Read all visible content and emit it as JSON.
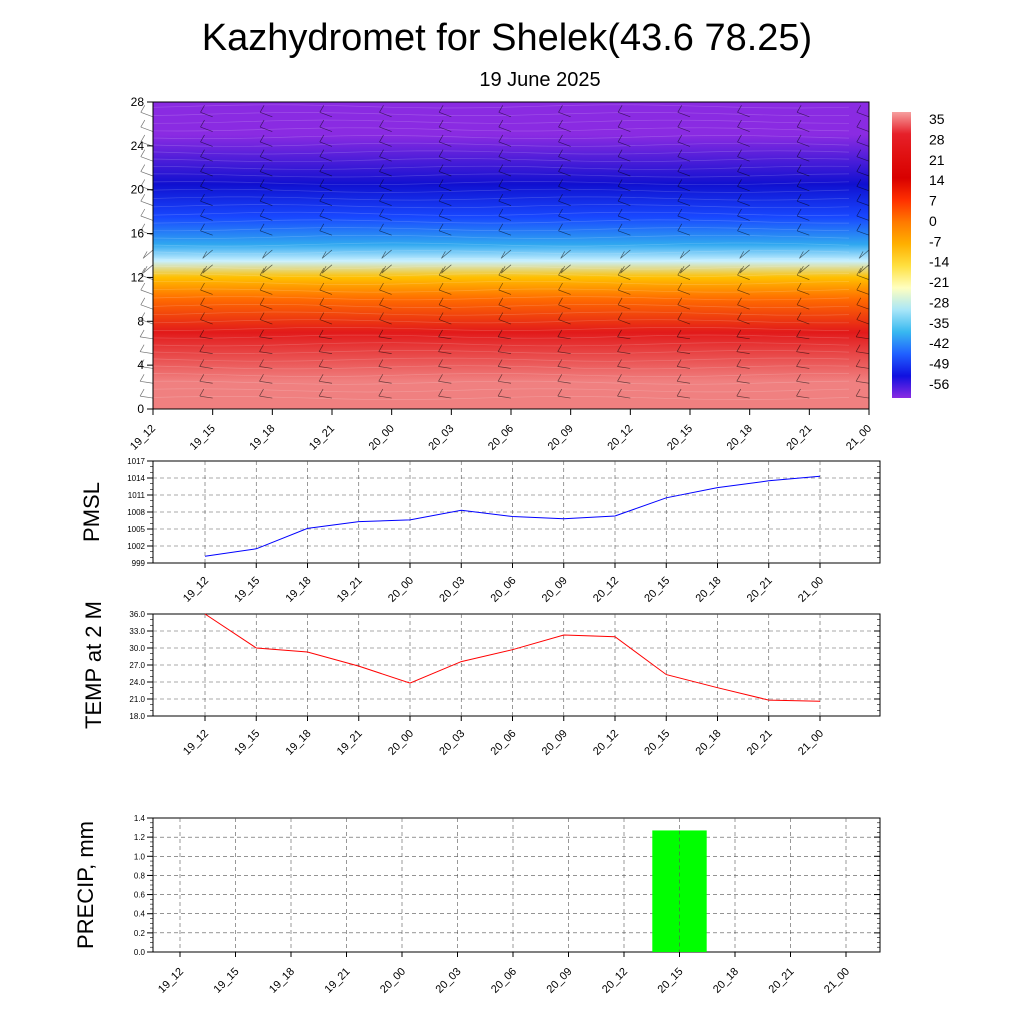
{
  "title": "Kazhydromet for Shelek(43.6 78.25)",
  "subtitle": "19 June 2025",
  "time_labels": [
    "19_12",
    "19_15",
    "19_18",
    "19_21",
    "20_00",
    "20_03",
    "20_06",
    "20_09",
    "20_12",
    "20_15",
    "20_18",
    "20_21",
    "21_00"
  ],
  "colors": {
    "pmsl_line": "#0000ff",
    "temp_line": "#ff0000",
    "precip_bar": "#00ff00"
  },
  "chart_data": [
    {
      "type": "heatmap",
      "name": "temperature-wind-profile",
      "ylim": [
        0,
        28
      ],
      "yticks": [
        0,
        4,
        8,
        12,
        16,
        20,
        24,
        28
      ],
      "categories": [
        "19_12",
        "19_15",
        "19_18",
        "19_21",
        "20_00",
        "20_03",
        "20_06",
        "20_09",
        "20_12",
        "20_15",
        "20_18",
        "20_21",
        "21_00"
      ],
      "colorbar": {
        "labels": [
          "35",
          "28",
          "21",
          "14",
          "7",
          "0",
          "-7",
          "-14",
          "-21",
          "-28",
          "-35",
          "-42",
          "-49",
          "-56"
        ],
        "colors": [
          "#f6a0a0",
          "#e6202a",
          "#e01010",
          "#d80000",
          "#ff3000",
          "#ff7a00",
          "#ffb000",
          "#ffe040",
          "#ffffc0",
          "#a8e6f8",
          "#38b8f0",
          "#2060ff",
          "#1010e0",
          "#8a2be2"
        ]
      },
      "bands": [
        {
          "from": 0,
          "to": 5,
          "color": "#f08080"
        },
        {
          "from": 5,
          "to": 9,
          "color": "#e21a1a"
        },
        {
          "from": 9,
          "to": 11,
          "color": "#ff6a00"
        },
        {
          "from": 11,
          "to": 13,
          "color": "#ffc000"
        },
        {
          "from": 13,
          "to": 14,
          "color": "#c8f0ff"
        },
        {
          "from": 14,
          "to": 16,
          "color": "#30a8f0"
        },
        {
          "from": 16,
          "to": 19,
          "color": "#1848ff"
        },
        {
          "from": 19,
          "to": 22,
          "color": "#1010d0"
        },
        {
          "from": 22,
          "to": 28,
          "color": "#8a2be2"
        }
      ]
    },
    {
      "type": "line",
      "name": "pmsl",
      "ylabel": "PMSL",
      "ylim": [
        999,
        1017
      ],
      "yticks": [
        "999",
        "1002",
        "1005",
        "1008",
        "1011",
        "1014",
        "1017"
      ],
      "categories": [
        "19_12",
        "19_15",
        "19_18",
        "19_21",
        "20_00",
        "20_03",
        "20_06",
        "20_09",
        "20_12",
        "20_15",
        "20_18",
        "20_21",
        "21_00"
      ],
      "values": [
        1000.2,
        1001.5,
        1005.1,
        1006.3,
        1006.6,
        1008.3,
        1007.2,
        1006.8,
        1007.3,
        1010.5,
        1012.3,
        1013.5,
        1014.3
      ]
    },
    {
      "type": "line",
      "name": "temperature-2m",
      "ylabel": "TEMP at 2 M",
      "ylim": [
        18,
        36
      ],
      "yticks": [
        "18.0",
        "21.0",
        "24.0",
        "27.0",
        "30.0",
        "33.0",
        "36.0"
      ],
      "categories": [
        "19_12",
        "19_15",
        "19_18",
        "19_21",
        "20_00",
        "20_03",
        "20_06",
        "20_09",
        "20_12",
        "20_15",
        "20_18",
        "20_21",
        "21_00"
      ],
      "values": [
        36.0,
        30.0,
        29.3,
        26.8,
        23.8,
        27.6,
        29.7,
        32.3,
        32.0,
        25.3,
        23.0,
        20.8,
        20.6
      ]
    },
    {
      "type": "bar",
      "name": "precipitation",
      "ylabel": "PRECIP, mm",
      "ylim": [
        0,
        1.4
      ],
      "yticks": [
        "0.0",
        "0.2",
        "0.4",
        "0.6",
        "0.8",
        "1.0",
        "1.2",
        "1.4"
      ],
      "categories": [
        "19_12",
        "19_15",
        "19_18",
        "19_21",
        "20_00",
        "20_03",
        "20_06",
        "20_09",
        "20_12",
        "20_15",
        "20_18",
        "20_21",
        "21_00"
      ],
      "values": [
        0,
        0,
        0,
        0,
        0,
        0,
        0,
        0,
        0,
        1.27,
        0,
        0,
        0
      ]
    }
  ]
}
